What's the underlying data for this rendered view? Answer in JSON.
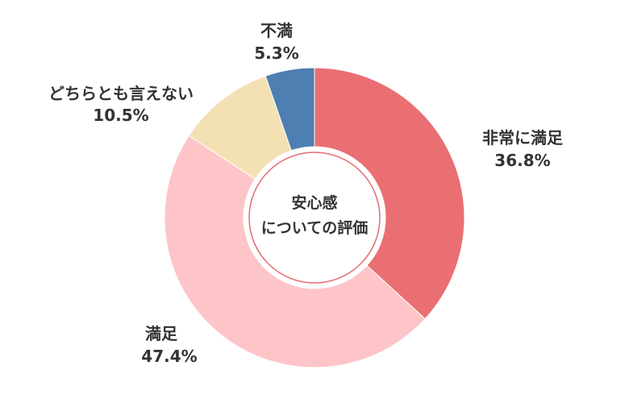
{
  "chart_data": {
    "type": "pie",
    "variant": "donut",
    "center_label": [
      "安心感",
      "についての評価"
    ],
    "series": [
      {
        "name": "非常に満足",
        "value": 36.8,
        "label": "36.8%",
        "color": "#ea6f73"
      },
      {
        "name": "満足",
        "value": 47.4,
        "label": "47.4%",
        "color": "#fdc5c7"
      },
      {
        "name": "どちらとも言えない",
        "value": 10.5,
        "label": "10.5%",
        "color": "#f3e0b3"
      },
      {
        "name": "不満",
        "value": 5.3,
        "label": "5.3%",
        "color": "#4d7fb2"
      }
    ]
  }
}
